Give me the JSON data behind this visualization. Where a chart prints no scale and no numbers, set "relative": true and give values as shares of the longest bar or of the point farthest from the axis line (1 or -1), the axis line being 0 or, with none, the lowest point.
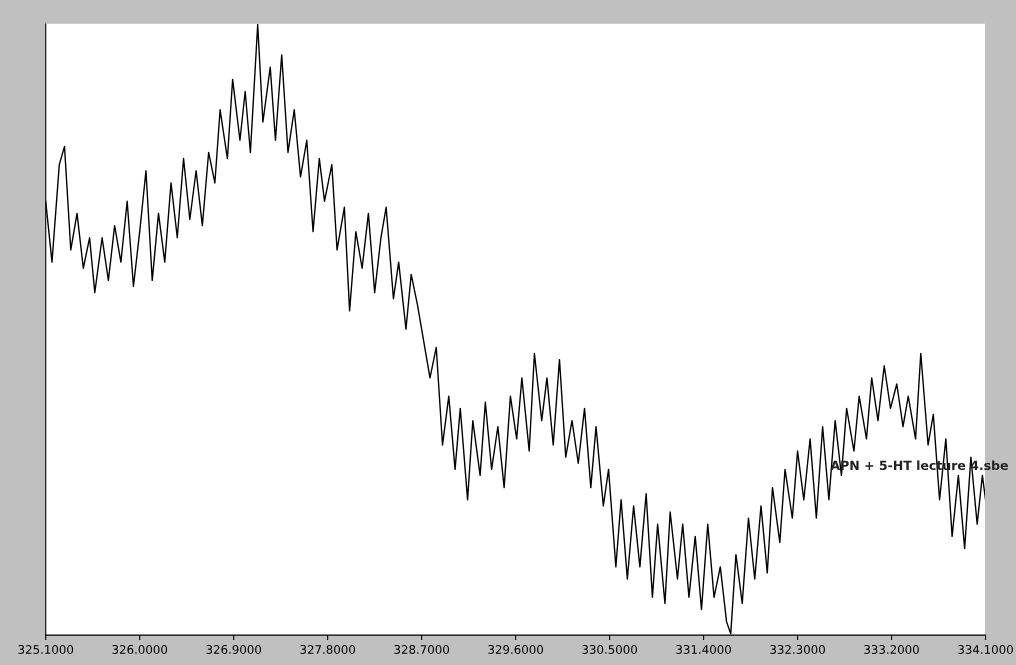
{
  "chart_data": {
    "type": "line",
    "relative": true,
    "color": "#000000",
    "grid": false,
    "legend": false,
    "marker": "none",
    "line_style": "solid",
    "xlim": [
      325.1,
      334.1
    ],
    "xticks": [
      {
        "value": 325.1,
        "label": "325.1000"
      },
      {
        "value": 326.0,
        "label": "326.0000"
      },
      {
        "value": 326.9,
        "label": "326.9000"
      },
      {
        "value": 327.8,
        "label": "327.8000"
      },
      {
        "value": 328.7,
        "label": "328.7000"
      },
      {
        "value": 329.6,
        "label": "329.6000"
      },
      {
        "value": 330.5,
        "label": "330.5000"
      },
      {
        "value": 331.4,
        "label": "331.4000"
      },
      {
        "value": 332.3,
        "label": "332.3000"
      },
      {
        "value": 333.2,
        "label": "333.2000"
      },
      {
        "value": 334.1,
        "label": "334.1000"
      }
    ],
    "annotations": [
      "APN + 5-HT lecture 4.sbe"
    ],
    "x": [
      325.1,
      325.16,
      325.23,
      325.28,
      325.34,
      325.4,
      325.46,
      325.52,
      325.57,
      325.64,
      325.7,
      325.76,
      325.82,
      325.88,
      325.94,
      326.0,
      326.06,
      326.12,
      326.18,
      326.24,
      326.3,
      326.36,
      326.42,
      326.48,
      326.54,
      326.6,
      326.66,
      326.72,
      326.77,
      326.84,
      326.89,
      326.96,
      327.01,
      327.06,
      327.13,
      327.18,
      327.25,
      327.3,
      327.36,
      327.42,
      327.48,
      327.54,
      327.6,
      327.66,
      327.72,
      327.77,
      327.84,
      327.89,
      327.96,
      328.01,
      328.07,
      328.13,
      328.19,
      328.25,
      328.31,
      328.36,
      328.43,
      328.48,
      328.55,
      328.6,
      328.66,
      328.72,
      328.78,
      328.84,
      328.9,
      328.96,
      329.02,
      329.07,
      329.14,
      329.19,
      329.26,
      329.31,
      329.37,
      329.43,
      329.49,
      329.55,
      329.61,
      329.66,
      329.73,
      329.78,
      329.85,
      329.9,
      329.96,
      330.02,
      330.08,
      330.14,
      330.2,
      330.26,
      330.32,
      330.37,
      330.44,
      330.49,
      330.56,
      330.61,
      330.67,
      330.73,
      330.79,
      330.85,
      330.91,
      330.96,
      331.03,
      331.08,
      331.15,
      331.2,
      331.26,
      331.32,
      331.38,
      331.44,
      331.5,
      331.56,
      331.62,
      331.66,
      331.71,
      331.77,
      331.83,
      331.89,
      331.95,
      332.01,
      332.06,
      332.13,
      332.18,
      332.25,
      332.3,
      332.36,
      332.42,
      332.48,
      332.54,
      332.6,
      332.66,
      332.72,
      332.77,
      332.84,
      332.89,
      332.96,
      333.01,
      333.07,
      333.13,
      333.19,
      333.25,
      333.31,
      333.36,
      333.43,
      333.48,
      333.55,
      333.6,
      333.66,
      333.72,
      333.78,
      333.84,
      333.9,
      333.96,
      334.02,
      334.07,
      334.1
    ],
    "values": [
      0.71,
      0.61,
      0.77,
      0.8,
      0.63,
      0.69,
      0.6,
      0.65,
      0.56,
      0.65,
      0.58,
      0.67,
      0.61,
      0.71,
      0.57,
      0.66,
      0.76,
      0.58,
      0.69,
      0.61,
      0.74,
      0.65,
      0.78,
      0.68,
      0.76,
      0.67,
      0.79,
      0.74,
      0.86,
      0.78,
      0.91,
      0.81,
      0.89,
      0.79,
      1.0,
      0.84,
      0.93,
      0.81,
      0.95,
      0.79,
      0.86,
      0.75,
      0.81,
      0.66,
      0.78,
      0.71,
      0.77,
      0.63,
      0.7,
      0.53,
      0.66,
      0.6,
      0.69,
      0.56,
      0.65,
      0.7,
      0.55,
      0.61,
      0.5,
      0.59,
      0.54,
      0.48,
      0.42,
      0.47,
      0.31,
      0.39,
      0.27,
      0.37,
      0.22,
      0.35,
      0.26,
      0.38,
      0.27,
      0.34,
      0.24,
      0.39,
      0.32,
      0.42,
      0.3,
      0.46,
      0.35,
      0.42,
      0.31,
      0.45,
      0.29,
      0.35,
      0.28,
      0.37,
      0.24,
      0.34,
      0.21,
      0.27,
      0.11,
      0.22,
      0.09,
      0.21,
      0.11,
      0.23,
      0.06,
      0.18,
      0.05,
      0.2,
      0.09,
      0.18,
      0.06,
      0.16,
      0.04,
      0.18,
      0.06,
      0.11,
      0.02,
      0.0,
      0.13,
      0.05,
      0.19,
      0.09,
      0.21,
      0.1,
      0.24,
      0.15,
      0.27,
      0.19,
      0.3,
      0.22,
      0.32,
      0.19,
      0.34,
      0.22,
      0.35,
      0.26,
      0.37,
      0.3,
      0.39,
      0.32,
      0.42,
      0.35,
      0.44,
      0.37,
      0.41,
      0.34,
      0.39,
      0.32,
      0.46,
      0.31,
      0.36,
      0.22,
      0.32,
      0.16,
      0.26,
      0.14,
      0.29,
      0.18,
      0.26,
      0.22
    ]
  }
}
